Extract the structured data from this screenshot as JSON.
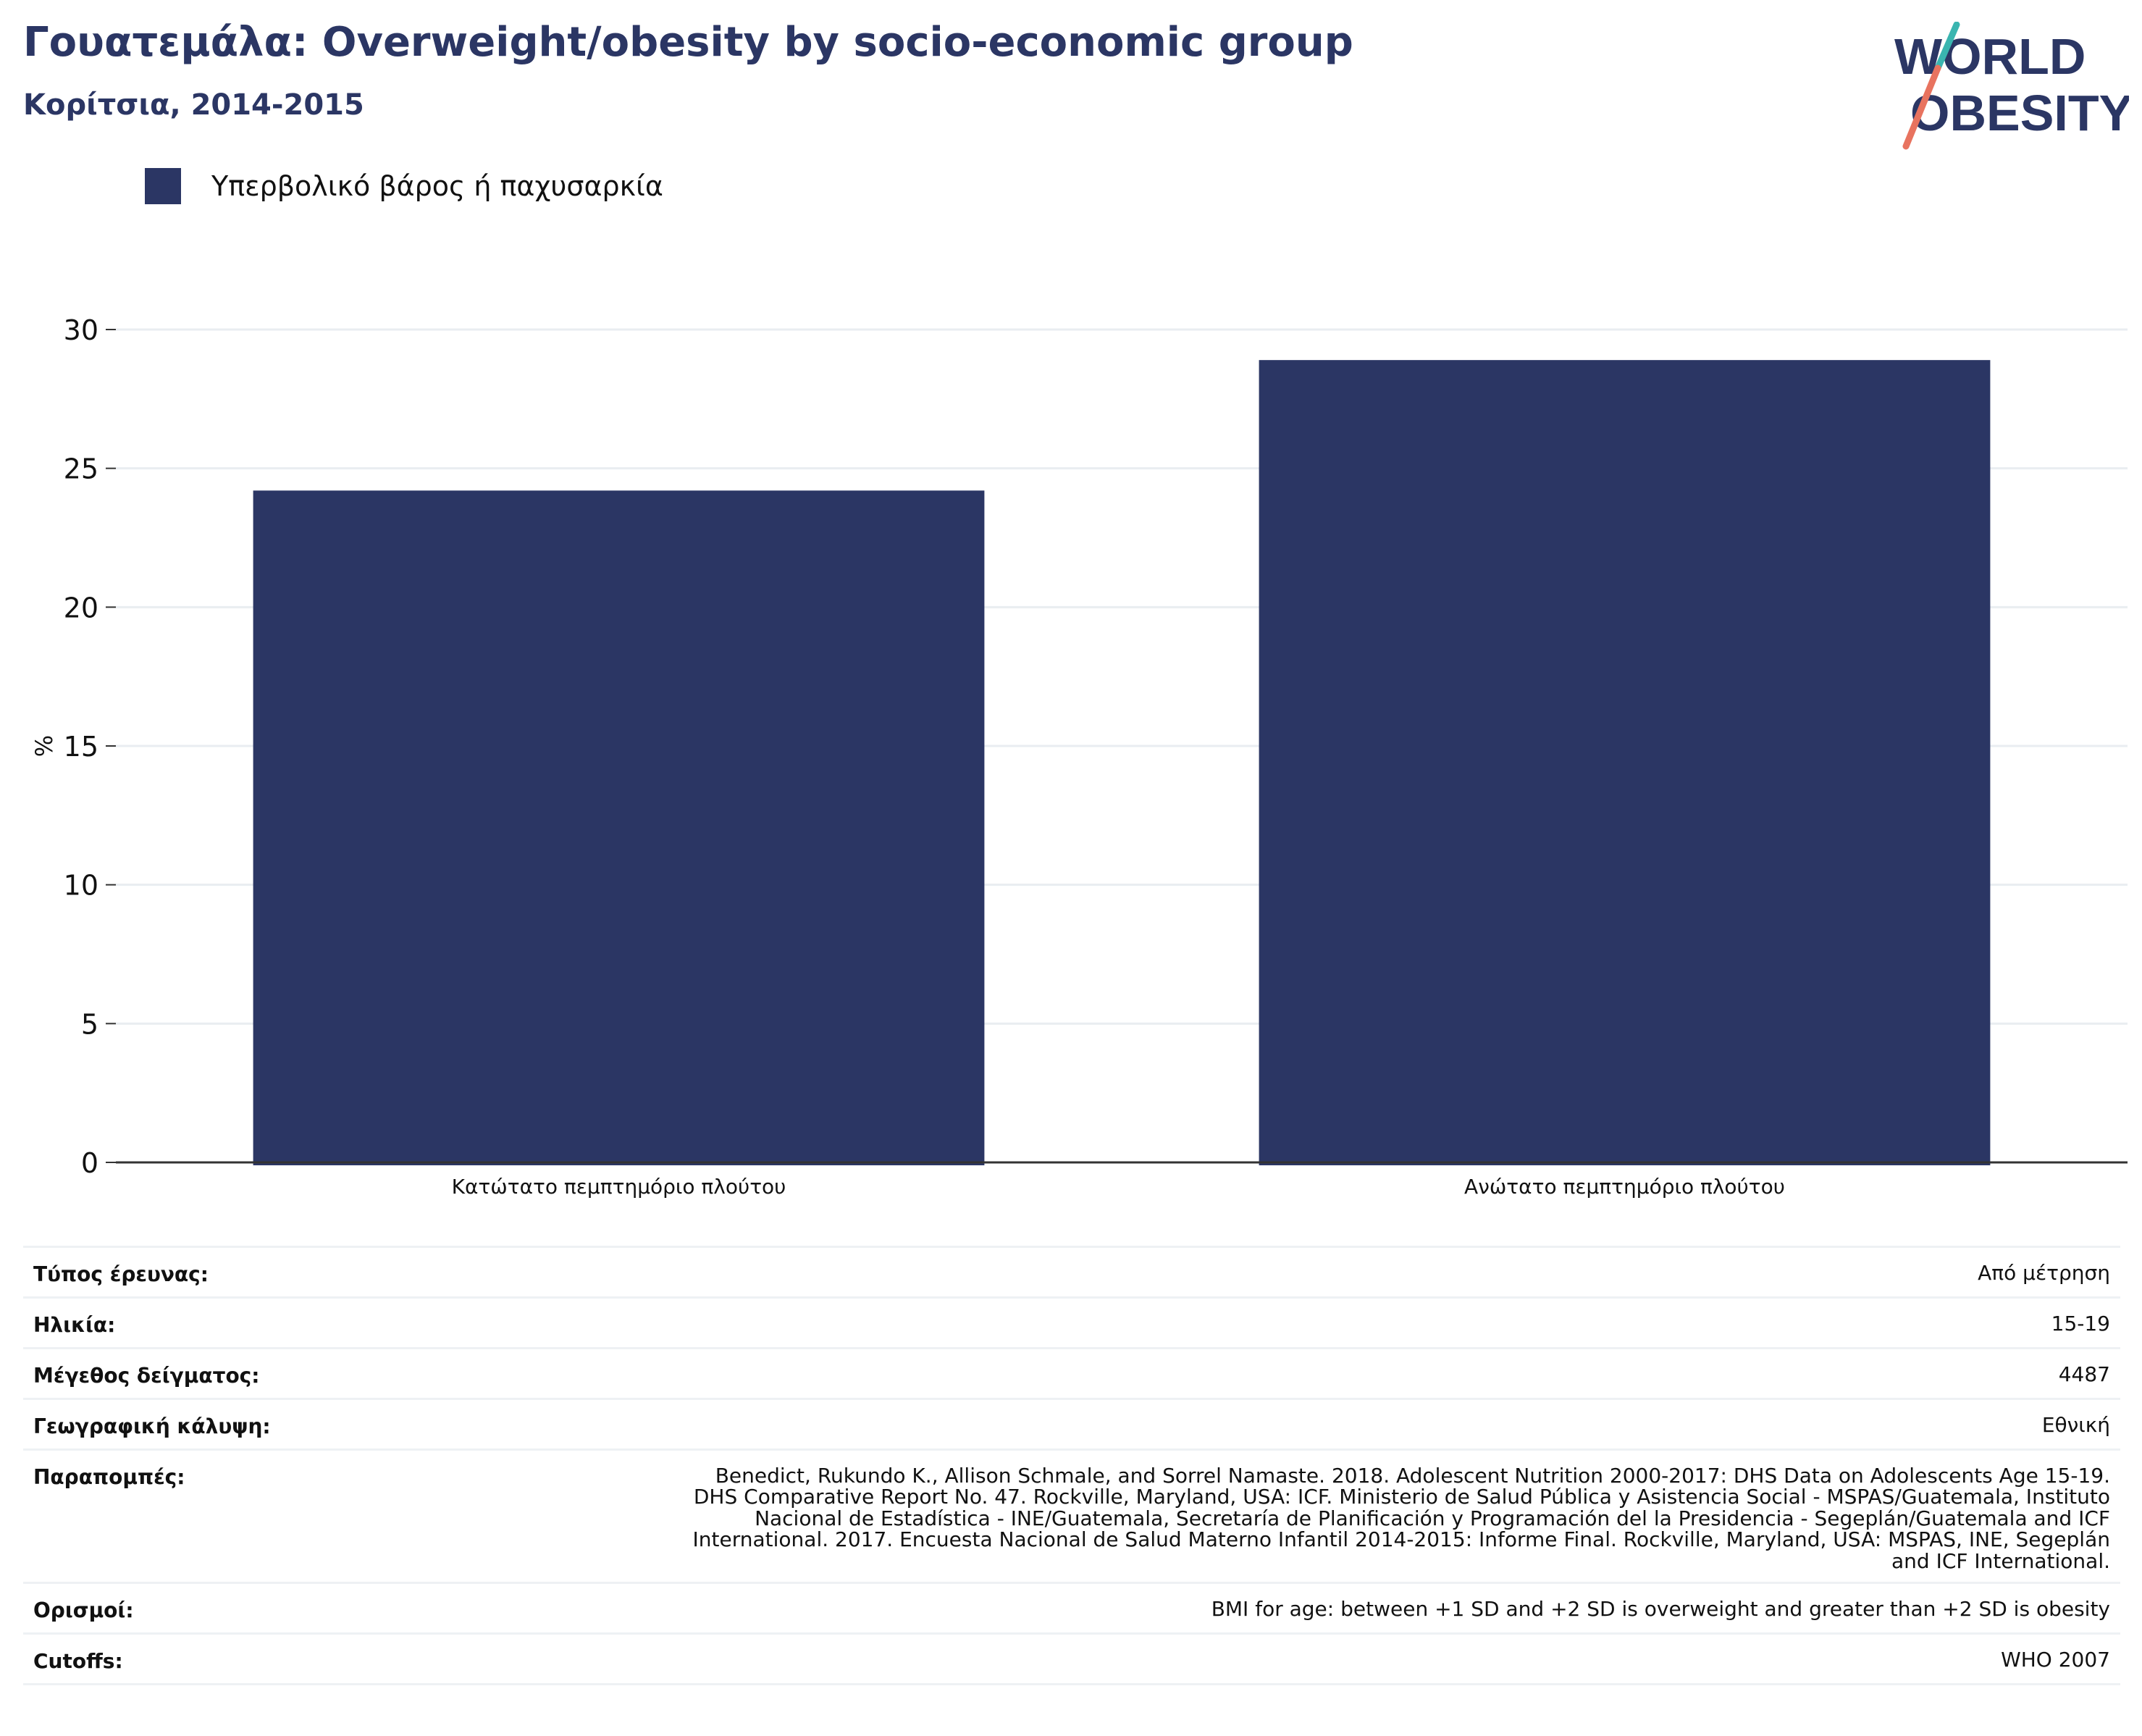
{
  "header": {
    "title": "Γουατεμάλα: Overweight/obesity by socio-economic group",
    "subtitle": "Κορίτσια, 2014-2015"
  },
  "logo": {
    "line1": "WORLD",
    "line2": "OBESITY",
    "icon": "world-obesity-logo"
  },
  "colors": {
    "brand": "#2b3664",
    "bar": "#2b3664",
    "grid": "#e9edf1",
    "logo_teal": "#3ab5b0",
    "logo_coral": "#e8735f"
  },
  "legend": {
    "label": "Υπερβολικό βάρος ή παχυσαρκία"
  },
  "chart_data": {
    "type": "bar",
    "categories": [
      "Κατώτατο πεμπτημόριο πλούτου",
      "Ανώτατο πεμπτημόριο πλούτου"
    ],
    "series": [
      {
        "name": "Υπερβολικό βάρος ή παχυσαρκία",
        "values": [
          24.2,
          28.9
        ]
      }
    ],
    "ylabel": "%",
    "ylim": [
      0,
      30
    ],
    "yticks": [
      0,
      5,
      10,
      15,
      20,
      25,
      30
    ],
    "grid": true,
    "legend_position": "top-left"
  },
  "info": [
    {
      "key": "Τύπος έρευνας:",
      "value": "Από μέτρηση"
    },
    {
      "key": "Ηλικία:",
      "value": "15-19"
    },
    {
      "key": "Μέγεθος δείγματος:",
      "value": "4487"
    },
    {
      "key": "Γεωγραφική κάλυψη:",
      "value": "Εθνική"
    },
    {
      "key": "Παραπομπές:",
      "value_lines": [
        "Benedict, Rukundo K., Allison Schmale, and Sorrel Namaste. 2018. Adolescent Nutrition 2000-2017: DHS Data on Adolescents Age 15-19.",
        "DHS Comparative Report No. 47. Rockville, Maryland, USA: ICF. Ministerio de Salud Pública y Asistencia Social - MSPAS/Guatemala, Instituto",
        "Nacional de Estadística - INE/Guatemala, Secretaría de Planificación y Programación del la Presidencia - Segeplán/Guatemala and ICF",
        "International. 2017. Encuesta Nacional de Salud Materno Infantil 2014-2015: Informe Final. Rockville, Maryland, USA: MSPAS, INE, Segeplán",
        "and ICF International."
      ]
    },
    {
      "key": "Ορισμοί:",
      "value": "BMI for age: between +1 SD and +2 SD is overweight and greater than +2 SD is obesity"
    },
    {
      "key": "Cutoffs:",
      "value": "WHO 2007"
    }
  ]
}
